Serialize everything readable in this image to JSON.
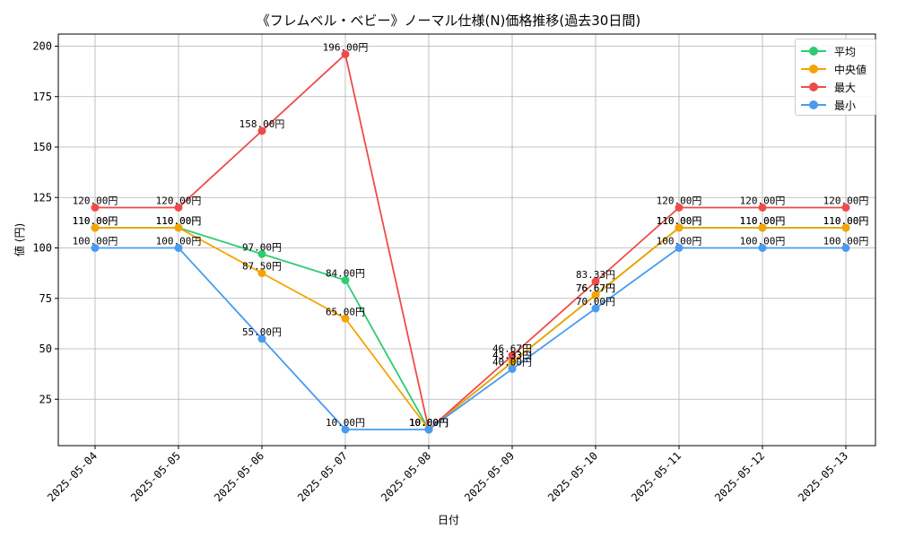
{
  "chart_data": {
    "type": "line",
    "title": "《フレムベル・ベビー》ノーマル仕様(N)価格推移(過去30日間)",
    "xlabel": "日付",
    "ylabel": "値 (円)",
    "x": [
      "2025-05-04",
      "2025-05-05",
      "2025-05-06",
      "2025-05-07",
      "2025-05-08",
      "2025-05-09",
      "2025-05-10",
      "2025-05-11",
      "2025-05-12",
      "2025-05-13"
    ],
    "ylim": [
      2,
      206
    ],
    "yticks": [
      25,
      50,
      75,
      100,
      125,
      150,
      175,
      200
    ],
    "grid": true,
    "legend_position": "top-right",
    "value_suffix": "円",
    "series": [
      {
        "name": "平均",
        "color": "#2ecc71",
        "values": [
          110,
          110,
          97,
          84,
          10,
          43.33,
          76.67,
          110,
          110,
          110
        ]
      },
      {
        "name": "中央値",
        "color": "#f5a300",
        "values": [
          110,
          110,
          87.5,
          65,
          10,
          43.33,
          76.67,
          110,
          110,
          110
        ]
      },
      {
        "name": "最大",
        "color": "#ef4b4b",
        "values": [
          120,
          120,
          158,
          196,
          10,
          46.67,
          83.33,
          120,
          120,
          120
        ]
      },
      {
        "name": "最小",
        "color": "#4a9bf0",
        "values": [
          100,
          100,
          55,
          10,
          10,
          40,
          70,
          100,
          100,
          100
        ]
      }
    ]
  }
}
